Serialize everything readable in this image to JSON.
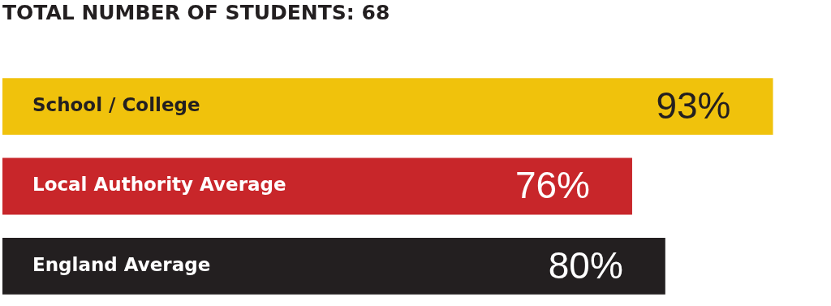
{
  "chart_data": {
    "type": "bar",
    "orientation": "horizontal",
    "title": "TOTAL NUMBER OF STUDENTS: 68",
    "categories": [
      "School / College",
      "Local Authority Average",
      "England Average"
    ],
    "values": [
      93,
      76,
      80
    ],
    "colors": [
      "#f0c20c",
      "#c8262a",
      "#231f20"
    ],
    "value_labels": [
      "93%",
      "76%",
      "80%"
    ]
  }
}
